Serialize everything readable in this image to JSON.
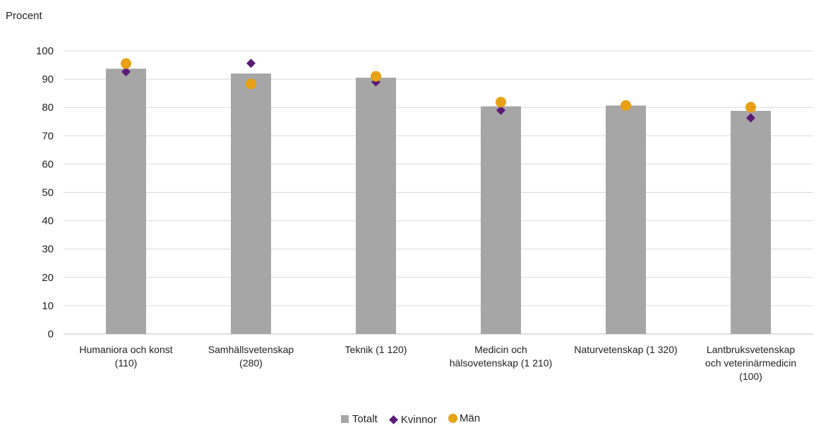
{
  "chart_data": {
    "type": "bar",
    "ylabel": "Procent",
    "ylim": [
      0,
      100
    ],
    "yticks": [
      0,
      10,
      20,
      30,
      40,
      50,
      60,
      70,
      80,
      90,
      100
    ],
    "grid": true,
    "legend_position": "bottom",
    "categories": [
      [
        "Humaniora och konst",
        "(110)"
      ],
      [
        "Samhällsvetenskap",
        "(280)"
      ],
      [
        "Teknik (1 120)"
      ],
      [
        "Medicin och",
        "hälsovetenskap (1 210)"
      ],
      [
        "Naturvetenskap (1 320)"
      ],
      [
        "Lantbruksvetenskap",
        "och veterinärmedicin",
        "(100)"
      ]
    ],
    "series": [
      {
        "name": "Totalt",
        "kind": "bar",
        "color": "#a6a6a6",
        "values": [
          93.7,
          92.0,
          90.5,
          80.4,
          80.7,
          78.8
        ]
      },
      {
        "name": "Kvinnor",
        "kind": "diamond",
        "color": "#5b1a78",
        "values": [
          92.6,
          95.6,
          89.0,
          79.0,
          80.8,
          76.3
        ]
      },
      {
        "name": "Män",
        "kind": "circle",
        "color": "#e8a015",
        "values": [
          95.5,
          88.3,
          91.0,
          81.9,
          80.7,
          80.1
        ]
      }
    ]
  }
}
